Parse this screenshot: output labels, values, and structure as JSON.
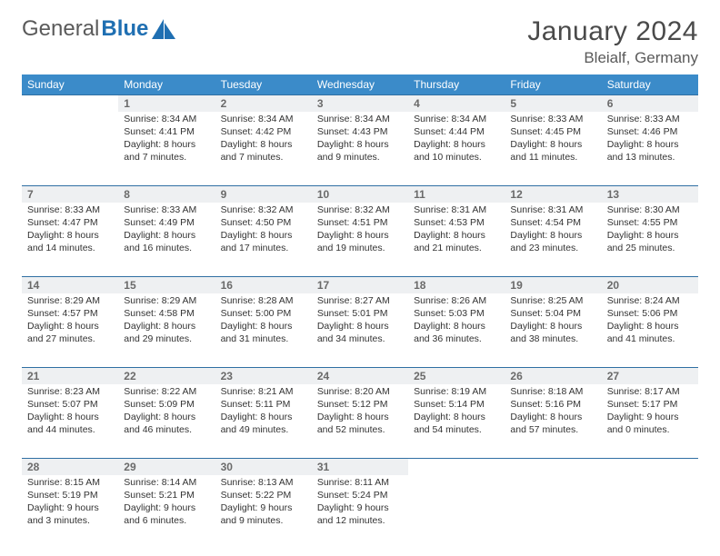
{
  "brand": {
    "part1": "General",
    "part2": "Blue"
  },
  "title": "January 2024",
  "location": "Bleialf, Germany",
  "colors": {
    "header_bg": "#3b8bc9",
    "header_text": "#ffffff",
    "daynum_bg": "#eef0f2",
    "row_border": "#2f6fa3",
    "text": "#333333",
    "muted": "#6a6a6a",
    "brand_gray": "#5a5a5a",
    "brand_blue": "#1f6fb2"
  },
  "weekdays": [
    "Sunday",
    "Monday",
    "Tuesday",
    "Wednesday",
    "Thursday",
    "Friday",
    "Saturday"
  ],
  "weeks": [
    [
      null,
      {
        "day": "1",
        "sunrise": "Sunrise: 8:34 AM",
        "sunset": "Sunset: 4:41 PM",
        "daylight1": "Daylight: 8 hours",
        "daylight2": "and 7 minutes."
      },
      {
        "day": "2",
        "sunrise": "Sunrise: 8:34 AM",
        "sunset": "Sunset: 4:42 PM",
        "daylight1": "Daylight: 8 hours",
        "daylight2": "and 7 minutes."
      },
      {
        "day": "3",
        "sunrise": "Sunrise: 8:34 AM",
        "sunset": "Sunset: 4:43 PM",
        "daylight1": "Daylight: 8 hours",
        "daylight2": "and 9 minutes."
      },
      {
        "day": "4",
        "sunrise": "Sunrise: 8:34 AM",
        "sunset": "Sunset: 4:44 PM",
        "daylight1": "Daylight: 8 hours",
        "daylight2": "and 10 minutes."
      },
      {
        "day": "5",
        "sunrise": "Sunrise: 8:33 AM",
        "sunset": "Sunset: 4:45 PM",
        "daylight1": "Daylight: 8 hours",
        "daylight2": "and 11 minutes."
      },
      {
        "day": "6",
        "sunrise": "Sunrise: 8:33 AM",
        "sunset": "Sunset: 4:46 PM",
        "daylight1": "Daylight: 8 hours",
        "daylight2": "and 13 minutes."
      }
    ],
    [
      {
        "day": "7",
        "sunrise": "Sunrise: 8:33 AM",
        "sunset": "Sunset: 4:47 PM",
        "daylight1": "Daylight: 8 hours",
        "daylight2": "and 14 minutes."
      },
      {
        "day": "8",
        "sunrise": "Sunrise: 8:33 AM",
        "sunset": "Sunset: 4:49 PM",
        "daylight1": "Daylight: 8 hours",
        "daylight2": "and 16 minutes."
      },
      {
        "day": "9",
        "sunrise": "Sunrise: 8:32 AM",
        "sunset": "Sunset: 4:50 PM",
        "daylight1": "Daylight: 8 hours",
        "daylight2": "and 17 minutes."
      },
      {
        "day": "10",
        "sunrise": "Sunrise: 8:32 AM",
        "sunset": "Sunset: 4:51 PM",
        "daylight1": "Daylight: 8 hours",
        "daylight2": "and 19 minutes."
      },
      {
        "day": "11",
        "sunrise": "Sunrise: 8:31 AM",
        "sunset": "Sunset: 4:53 PM",
        "daylight1": "Daylight: 8 hours",
        "daylight2": "and 21 minutes."
      },
      {
        "day": "12",
        "sunrise": "Sunrise: 8:31 AM",
        "sunset": "Sunset: 4:54 PM",
        "daylight1": "Daylight: 8 hours",
        "daylight2": "and 23 minutes."
      },
      {
        "day": "13",
        "sunrise": "Sunrise: 8:30 AM",
        "sunset": "Sunset: 4:55 PM",
        "daylight1": "Daylight: 8 hours",
        "daylight2": "and 25 minutes."
      }
    ],
    [
      {
        "day": "14",
        "sunrise": "Sunrise: 8:29 AM",
        "sunset": "Sunset: 4:57 PM",
        "daylight1": "Daylight: 8 hours",
        "daylight2": "and 27 minutes."
      },
      {
        "day": "15",
        "sunrise": "Sunrise: 8:29 AM",
        "sunset": "Sunset: 4:58 PM",
        "daylight1": "Daylight: 8 hours",
        "daylight2": "and 29 minutes."
      },
      {
        "day": "16",
        "sunrise": "Sunrise: 8:28 AM",
        "sunset": "Sunset: 5:00 PM",
        "daylight1": "Daylight: 8 hours",
        "daylight2": "and 31 minutes."
      },
      {
        "day": "17",
        "sunrise": "Sunrise: 8:27 AM",
        "sunset": "Sunset: 5:01 PM",
        "daylight1": "Daylight: 8 hours",
        "daylight2": "and 34 minutes."
      },
      {
        "day": "18",
        "sunrise": "Sunrise: 8:26 AM",
        "sunset": "Sunset: 5:03 PM",
        "daylight1": "Daylight: 8 hours",
        "daylight2": "and 36 minutes."
      },
      {
        "day": "19",
        "sunrise": "Sunrise: 8:25 AM",
        "sunset": "Sunset: 5:04 PM",
        "daylight1": "Daylight: 8 hours",
        "daylight2": "and 38 minutes."
      },
      {
        "day": "20",
        "sunrise": "Sunrise: 8:24 AM",
        "sunset": "Sunset: 5:06 PM",
        "daylight1": "Daylight: 8 hours",
        "daylight2": "and 41 minutes."
      }
    ],
    [
      {
        "day": "21",
        "sunrise": "Sunrise: 8:23 AM",
        "sunset": "Sunset: 5:07 PM",
        "daylight1": "Daylight: 8 hours",
        "daylight2": "and 44 minutes."
      },
      {
        "day": "22",
        "sunrise": "Sunrise: 8:22 AM",
        "sunset": "Sunset: 5:09 PM",
        "daylight1": "Daylight: 8 hours",
        "daylight2": "and 46 minutes."
      },
      {
        "day": "23",
        "sunrise": "Sunrise: 8:21 AM",
        "sunset": "Sunset: 5:11 PM",
        "daylight1": "Daylight: 8 hours",
        "daylight2": "and 49 minutes."
      },
      {
        "day": "24",
        "sunrise": "Sunrise: 8:20 AM",
        "sunset": "Sunset: 5:12 PM",
        "daylight1": "Daylight: 8 hours",
        "daylight2": "and 52 minutes."
      },
      {
        "day": "25",
        "sunrise": "Sunrise: 8:19 AM",
        "sunset": "Sunset: 5:14 PM",
        "daylight1": "Daylight: 8 hours",
        "daylight2": "and 54 minutes."
      },
      {
        "day": "26",
        "sunrise": "Sunrise: 8:18 AM",
        "sunset": "Sunset: 5:16 PM",
        "daylight1": "Daylight: 8 hours",
        "daylight2": "and 57 minutes."
      },
      {
        "day": "27",
        "sunrise": "Sunrise: 8:17 AM",
        "sunset": "Sunset: 5:17 PM",
        "daylight1": "Daylight: 9 hours",
        "daylight2": "and 0 minutes."
      }
    ],
    [
      {
        "day": "28",
        "sunrise": "Sunrise: 8:15 AM",
        "sunset": "Sunset: 5:19 PM",
        "daylight1": "Daylight: 9 hours",
        "daylight2": "and 3 minutes."
      },
      {
        "day": "29",
        "sunrise": "Sunrise: 8:14 AM",
        "sunset": "Sunset: 5:21 PM",
        "daylight1": "Daylight: 9 hours",
        "daylight2": "and 6 minutes."
      },
      {
        "day": "30",
        "sunrise": "Sunrise: 8:13 AM",
        "sunset": "Sunset: 5:22 PM",
        "daylight1": "Daylight: 9 hours",
        "daylight2": "and 9 minutes."
      },
      {
        "day": "31",
        "sunrise": "Sunrise: 8:11 AM",
        "sunset": "Sunset: 5:24 PM",
        "daylight1": "Daylight: 9 hours",
        "daylight2": "and 12 minutes."
      },
      null,
      null,
      null
    ]
  ]
}
